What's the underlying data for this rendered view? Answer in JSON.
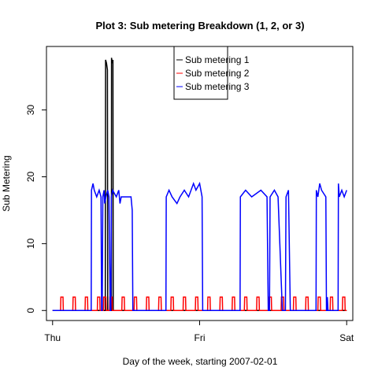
{
  "chart_data": {
    "type": "line",
    "title": "Plot 3: Sub metering Breakdown (1, 2, or 3)",
    "xlabel": "Day of the week, starting 2007-02-01",
    "ylabel": "Sub Metering",
    "x_ticks": [
      {
        "label": "Thu",
        "value": 0
      },
      {
        "label": "Fri",
        "value": 24
      },
      {
        "label": "Sat",
        "value": 48
      }
    ],
    "y_ticks": [
      0,
      10,
      20,
      30
    ],
    "xlim": [
      -1,
      49
    ],
    "ylim": [
      -1.5,
      39.5
    ],
    "legend_position": "top-center",
    "series": [
      {
        "name": "Sub metering 1",
        "color": "#000000",
        "points": [
          [
            0,
            0
          ],
          [
            8.6,
            0
          ],
          [
            8.65,
            37.5
          ],
          [
            8.8,
            37
          ],
          [
            8.95,
            36
          ],
          [
            9.0,
            0
          ],
          [
            9.6,
            0
          ],
          [
            9.62,
            37.8
          ],
          [
            9.75,
            37
          ],
          [
            9.85,
            37.5
          ],
          [
            9.9,
            0
          ],
          [
            48,
            0
          ]
        ]
      },
      {
        "name": "Sub metering 2",
        "color": "#ff0000",
        "points": [
          [
            0,
            0
          ],
          [
            1.3,
            0
          ],
          [
            1.35,
            2
          ],
          [
            1.7,
            2
          ],
          [
            1.75,
            0
          ],
          [
            3.3,
            0
          ],
          [
            3.35,
            2
          ],
          [
            3.7,
            2
          ],
          [
            3.75,
            0
          ],
          [
            5.3,
            0
          ],
          [
            5.35,
            2
          ],
          [
            5.7,
            2
          ],
          [
            5.75,
            0
          ],
          [
            7.3,
            0
          ],
          [
            7.35,
            2
          ],
          [
            7.7,
            2
          ],
          [
            7.75,
            0
          ],
          [
            8.3,
            0
          ],
          [
            8.35,
            2
          ],
          [
            8.7,
            2
          ],
          [
            8.75,
            0
          ],
          [
            9.3,
            0
          ],
          [
            9.35,
            2
          ],
          [
            9.7,
            2
          ],
          [
            9.75,
            0
          ],
          [
            11.3,
            0
          ],
          [
            11.35,
            2
          ],
          [
            11.7,
            2
          ],
          [
            11.75,
            0
          ],
          [
            13.3,
            0
          ],
          [
            13.35,
            2
          ],
          [
            13.7,
            2
          ],
          [
            13.75,
            0
          ],
          [
            15.3,
            0
          ],
          [
            15.35,
            2
          ],
          [
            15.7,
            2
          ],
          [
            15.75,
            0
          ],
          [
            17.3,
            0
          ],
          [
            17.35,
            2
          ],
          [
            17.7,
            2
          ],
          [
            17.75,
            0
          ],
          [
            19.3,
            0
          ],
          [
            19.35,
            2
          ],
          [
            19.7,
            2
          ],
          [
            19.75,
            0
          ],
          [
            21.3,
            0
          ],
          [
            21.35,
            2
          ],
          [
            21.7,
            2
          ],
          [
            21.75,
            0
          ],
          [
            23.3,
            0
          ],
          [
            23.35,
            2
          ],
          [
            23.7,
            2
          ],
          [
            23.75,
            0
          ],
          [
            25.3,
            0
          ],
          [
            25.35,
            2
          ],
          [
            25.7,
            2
          ],
          [
            25.75,
            0
          ],
          [
            27.3,
            0
          ],
          [
            27.35,
            2
          ],
          [
            27.7,
            2
          ],
          [
            27.75,
            0
          ],
          [
            29.3,
            0
          ],
          [
            29.35,
            2
          ],
          [
            29.7,
            2
          ],
          [
            29.75,
            0
          ],
          [
            31.3,
            0
          ],
          [
            31.35,
            2
          ],
          [
            31.7,
            2
          ],
          [
            31.75,
            0
          ],
          [
            33.3,
            0
          ],
          [
            33.35,
            2
          ],
          [
            33.7,
            2
          ],
          [
            33.75,
            0
          ],
          [
            35.3,
            0
          ],
          [
            35.35,
            2
          ],
          [
            35.7,
            2
          ],
          [
            35.75,
            0
          ],
          [
            37.3,
            0
          ],
          [
            37.35,
            2
          ],
          [
            37.7,
            2
          ],
          [
            37.75,
            0
          ],
          [
            39.3,
            0
          ],
          [
            39.35,
            2
          ],
          [
            39.7,
            2
          ],
          [
            39.75,
            0
          ],
          [
            41.3,
            0
          ],
          [
            41.35,
            2
          ],
          [
            41.7,
            2
          ],
          [
            41.75,
            0
          ],
          [
            43.3,
            0
          ],
          [
            43.35,
            2
          ],
          [
            43.7,
            2
          ],
          [
            43.75,
            0
          ],
          [
            45.3,
            0
          ],
          [
            45.35,
            2
          ],
          [
            45.7,
            2
          ],
          [
            45.75,
            0
          ],
          [
            47.3,
            0
          ],
          [
            47.35,
            2
          ],
          [
            47.7,
            2
          ],
          [
            47.75,
            0
          ],
          [
            48,
            0
          ]
        ]
      },
      {
        "name": "Sub metering 3",
        "color": "#0000ff",
        "points": [
          [
            0,
            0
          ],
          [
            6.3,
            0
          ],
          [
            6.35,
            18
          ],
          [
            6.6,
            19
          ],
          [
            6.8,
            18
          ],
          [
            7.2,
            17
          ],
          [
            7.6,
            18
          ],
          [
            7.9,
            17
          ],
          [
            8.0,
            0
          ],
          [
            8.1,
            0
          ],
          [
            8.2,
            17
          ],
          [
            8.4,
            18
          ],
          [
            8.5,
            16
          ],
          [
            8.7,
            17
          ],
          [
            9.0,
            18
          ],
          [
            9.2,
            17
          ],
          [
            9.4,
            0
          ],
          [
            9.5,
            0
          ],
          [
            9.6,
            17
          ],
          [
            9.8,
            18
          ],
          [
            10.4,
            17
          ],
          [
            10.8,
            18
          ],
          [
            11.0,
            16
          ],
          [
            11.2,
            17
          ],
          [
            12.8,
            17
          ],
          [
            13.0,
            15
          ],
          [
            13.1,
            0
          ],
          [
            18.5,
            0
          ],
          [
            18.55,
            17
          ],
          [
            19.0,
            18
          ],
          [
            19.5,
            17
          ],
          [
            20.3,
            16
          ],
          [
            20.8,
            17
          ],
          [
            21.5,
            18
          ],
          [
            22.2,
            17
          ],
          [
            23.0,
            19
          ],
          [
            23.4,
            18
          ],
          [
            24.0,
            19
          ],
          [
            24.4,
            17
          ],
          [
            24.5,
            0
          ],
          [
            30.6,
            0
          ],
          [
            30.65,
            17
          ],
          [
            31.5,
            18
          ],
          [
            32.5,
            17
          ],
          [
            34.0,
            18
          ],
          [
            35.0,
            17
          ],
          [
            35.2,
            0
          ],
          [
            35.4,
            0
          ],
          [
            35.5,
            17
          ],
          [
            36.2,
            18
          ],
          [
            36.8,
            17
          ],
          [
            37.5,
            0
          ],
          [
            38.0,
            0
          ],
          [
            38.1,
            17
          ],
          [
            38.5,
            18
          ],
          [
            38.8,
            0
          ],
          [
            43.0,
            0
          ],
          [
            43.05,
            18
          ],
          [
            43.3,
            17
          ],
          [
            43.6,
            19
          ],
          [
            43.9,
            18
          ],
          [
            44.6,
            17
          ],
          [
            44.7,
            0
          ],
          [
            44.8,
            0
          ],
          [
            44.85,
            2
          ],
          [
            44.95,
            0
          ],
          [
            46.6,
            0
          ],
          [
            46.65,
            19
          ],
          [
            46.8,
            17
          ],
          [
            47.2,
            18
          ],
          [
            47.6,
            17
          ],
          [
            48,
            18
          ]
        ]
      }
    ]
  }
}
